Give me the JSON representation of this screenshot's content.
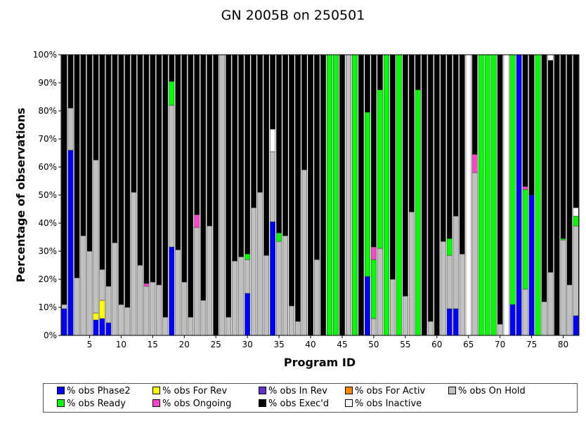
{
  "chart_data": {
    "type": "bar",
    "stacked": true,
    "title": "GN 2005B on 250501",
    "xlabel": "Program ID",
    "ylabel": "Percentage of observations",
    "ylim": [
      0,
      100
    ],
    "yticks": [
      "0%",
      "10%",
      "20%",
      "30%",
      "40%",
      "50%",
      "60%",
      "70%",
      "80%",
      "90%",
      "100%"
    ],
    "xticks": [
      5,
      10,
      15,
      20,
      25,
      30,
      35,
      40,
      45,
      50,
      55,
      60,
      65,
      70,
      75,
      80
    ],
    "grid": false,
    "legend_position": "bottom",
    "colors": {
      "phase2": "#0000ff",
      "for_rev": "#ffff00",
      "in_rev": "#6633cc",
      "for_activ": "#ff8800",
      "on_hold": "#c0c0c0",
      "ready": "#00ff00",
      "ongoing": "#ff44cc",
      "execd": "#000000",
      "inactive": "#ffffff"
    },
    "series_order": [
      "phase2",
      "for_rev",
      "in_rev",
      "for_activ",
      "on_hold",
      "ready",
      "ongoing",
      "execd",
      "inactive"
    ],
    "legend": [
      {
        "key": "phase2",
        "label": "% obs Phase2"
      },
      {
        "key": "for_rev",
        "label": "% obs For Rev"
      },
      {
        "key": "in_rev",
        "label": "% obs In Rev"
      },
      {
        "key": "for_activ",
        "label": "% obs For Activ"
      },
      {
        "key": "on_hold",
        "label": "% obs On Hold"
      },
      {
        "key": "ready",
        "label": "% obs Ready"
      },
      {
        "key": "ongoing",
        "label": "% obs Ongoing"
      },
      {
        "key": "execd",
        "label": "% obs Exec'd"
      },
      {
        "key": "inactive",
        "label": "% obs Inactive"
      }
    ],
    "bars": [
      {
        "id": 1,
        "phase2": 9.5,
        "on_hold": 1.5,
        "execd": 89
      },
      {
        "id": 2,
        "phase2": 66,
        "on_hold": 15,
        "execd": 19
      },
      {
        "id": 3,
        "on_hold": 20.5,
        "execd": 79.5
      },
      {
        "id": 4,
        "on_hold": 35.5,
        "execd": 64.5
      },
      {
        "id": 5,
        "on_hold": 30,
        "execd": 70
      },
      {
        "id": 6,
        "phase2": 5.5,
        "for_rev": 2.5,
        "on_hold": 54.5,
        "execd": 37.5
      },
      {
        "id": 7,
        "phase2": 6,
        "for_rev": 6.5,
        "on_hold": 11,
        "execd": 76.5
      },
      {
        "id": 8,
        "phase2": 4.5,
        "on_hold": 13,
        "execd": 82.5
      },
      {
        "id": 9,
        "on_hold": 33,
        "execd": 67
      },
      {
        "id": 10,
        "on_hold": 11,
        "execd": 89
      },
      {
        "id": 11,
        "on_hold": 10,
        "execd": 90
      },
      {
        "id": 12,
        "on_hold": 51,
        "execd": 49
      },
      {
        "id": 13,
        "on_hold": 25,
        "execd": 75
      },
      {
        "id": 14,
        "on_hold": 17.5,
        "ongoing": 1,
        "execd": 81.5
      },
      {
        "id": 15,
        "on_hold": 19,
        "execd": 81
      },
      {
        "id": 16,
        "on_hold": 18,
        "execd": 82
      },
      {
        "id": 17,
        "on_hold": 6.5,
        "execd": 93.5
      },
      {
        "id": 18,
        "phase2": 31.5,
        "on_hold": 50.5,
        "ready": 8.5,
        "execd": 9.5
      },
      {
        "id": 19,
        "on_hold": 30.5,
        "execd": 69.5
      },
      {
        "id": 20,
        "on_hold": 19,
        "execd": 81
      },
      {
        "id": 21,
        "on_hold": 6.5,
        "execd": 93.5
      },
      {
        "id": 22,
        "on_hold": 38.5,
        "ongoing": 4.5,
        "execd": 57
      },
      {
        "id": 23,
        "on_hold": 12.5,
        "execd": 87.5
      },
      {
        "id": 24,
        "on_hold": 39,
        "execd": 61
      },
      {
        "id": 25,
        "execd": 100
      },
      {
        "id": 26,
        "on_hold": 100
      },
      {
        "id": 27,
        "on_hold": 6.5,
        "execd": 93.5
      },
      {
        "id": 28,
        "on_hold": 26.5,
        "execd": 73.5
      },
      {
        "id": 29,
        "on_hold": 28,
        "execd": 72
      },
      {
        "id": 30,
        "phase2": 15,
        "on_hold": 12,
        "ready": 2,
        "execd": 71
      },
      {
        "id": 31,
        "on_hold": 45.5,
        "execd": 54.5
      },
      {
        "id": 32,
        "on_hold": 51,
        "execd": 49
      },
      {
        "id": 33,
        "on_hold": 28.5,
        "execd": 71.5
      },
      {
        "id": 34,
        "phase2": 40.5,
        "on_hold": 25,
        "execd": 0,
        "inactive": 8,
        "execd_top": 26.5
      },
      {
        "id": 35,
        "on_hold": 33.5,
        "ready": 3,
        "execd": 63.5
      },
      {
        "id": 36,
        "on_hold": 35.5,
        "execd": 64.5
      },
      {
        "id": 37,
        "on_hold": 10.5,
        "execd": 89.5
      },
      {
        "id": 38,
        "on_hold": 5,
        "execd": 95
      },
      {
        "id": 39,
        "on_hold": 59,
        "execd": 41
      },
      {
        "id": 40,
        "execd": 100
      },
      {
        "id": 41,
        "on_hold": 27,
        "execd": 73
      },
      {
        "id": 42,
        "execd": 100
      },
      {
        "id": 43,
        "ready": 100
      },
      {
        "id": 44,
        "ready": 100
      },
      {
        "id": 45,
        "execd": 100
      },
      {
        "id": 46,
        "on_hold": 100
      },
      {
        "id": 47,
        "ready": 100
      },
      {
        "id": 48,
        "execd": 100
      },
      {
        "id": 49,
        "phase2": 21,
        "ready": 58.5,
        "execd": 20.5
      },
      {
        "id": 50,
        "on_hold": 6,
        "ready": 21,
        "ongoing": 4.5,
        "execd": 68.5
      },
      {
        "id": 51,
        "on_hold": 31,
        "ready": 56.5,
        "execd": 12.5
      },
      {
        "id": 52,
        "ready": 100
      },
      {
        "id": 53,
        "on_hold": 20,
        "execd": 80
      },
      {
        "id": 54,
        "ready": 100
      },
      {
        "id": 55,
        "on_hold": 14,
        "execd": 86
      },
      {
        "id": 56,
        "on_hold": 44,
        "execd": 56
      },
      {
        "id": 57,
        "ready": 87.5,
        "execd": 12.5
      },
      {
        "id": 58,
        "execd": 100
      },
      {
        "id": 59,
        "on_hold": 5,
        "execd": 95
      },
      {
        "id": 60,
        "execd": 100
      },
      {
        "id": 61,
        "on_hold": 33.5,
        "execd": 66.5
      },
      {
        "id": 62,
        "phase2": 9.5,
        "on_hold": 19,
        "ready": 6,
        "execd": 65.5
      },
      {
        "id": 63,
        "phase2": 9.5,
        "on_hold": 33,
        "execd": 57.5
      },
      {
        "id": 64,
        "on_hold": 29,
        "execd": 71
      },
      {
        "id": 65,
        "inactive": 100
      },
      {
        "id": 66,
        "on_hold": 58,
        "ongoing": 6.5,
        "execd": 35.5
      },
      {
        "id": 67,
        "ready": 100
      },
      {
        "id": 68,
        "ready": 100
      },
      {
        "id": 69,
        "ready": 100
      },
      {
        "id": 70,
        "on_hold": 4,
        "execd": 96
      },
      {
        "id": 71,
        "inactive": 100
      },
      {
        "id": 72,
        "phase2": 11,
        "ready": 89
      },
      {
        "id": 73,
        "phase2": 100
      },
      {
        "id": 74,
        "on_hold": 16.5,
        "ready": 35.5,
        "ongoing": 1,
        "execd": 47
      },
      {
        "id": 75,
        "phase2": 50,
        "execd": 50
      },
      {
        "id": 76,
        "ready": 100
      },
      {
        "id": 77,
        "on_hold": 12,
        "execd": 88
      },
      {
        "id": 78,
        "on_hold": 22.5,
        "inactive": 2,
        "execd": 75.5
      },
      {
        "id": 79,
        "execd": 100
      },
      {
        "id": 80,
        "on_hold": 34,
        "ready": 0.5,
        "execd": 65.5
      },
      {
        "id": 81,
        "on_hold": 18,
        "execd": 82
      },
      {
        "id": 82,
        "phase2": 7,
        "on_hold": 32,
        "ready": 3.5,
        "execd": 0,
        "inactive": 3,
        "execd_top": 54.5
      }
    ]
  }
}
